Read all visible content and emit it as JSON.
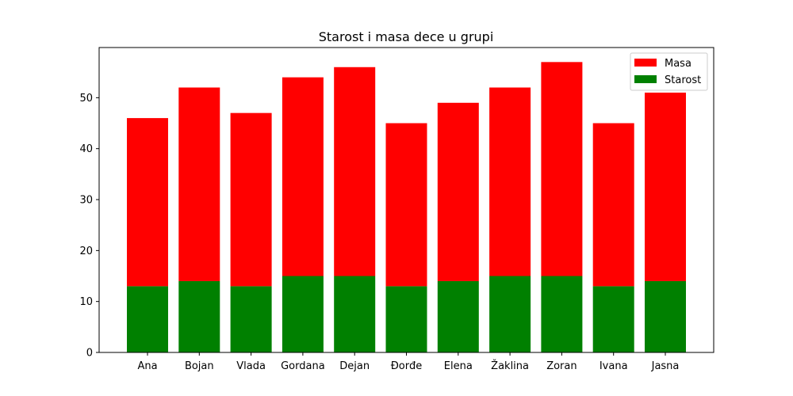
{
  "chart_data": {
    "type": "bar",
    "stacked": true,
    "title": "Starost i masa dece u grupi",
    "xlabel": "",
    "ylabel": "",
    "categories": [
      "Ana",
      "Bojan",
      "Vlada",
      "Gordana",
      "Dejan",
      "Đorđe",
      "Elena",
      "Žaklina",
      "Zoran",
      "Ivana",
      "Jasna"
    ],
    "series": [
      {
        "name": "Starost",
        "color": "#008000",
        "values": [
          13,
          14,
          13,
          15,
          15,
          13,
          14,
          15,
          15,
          13,
          14
        ]
      },
      {
        "name": "Masa",
        "color": "#ff0000",
        "values": [
          33,
          38,
          34,
          39,
          41,
          32,
          35,
          37,
          42,
          32,
          37
        ]
      }
    ],
    "ylim": [
      0,
      59.85
    ],
    "yticks": [
      0,
      10,
      20,
      30,
      40,
      50
    ],
    "legend": {
      "position": "top-right",
      "order": [
        "Masa",
        "Starost"
      ]
    },
    "grid": false
  }
}
